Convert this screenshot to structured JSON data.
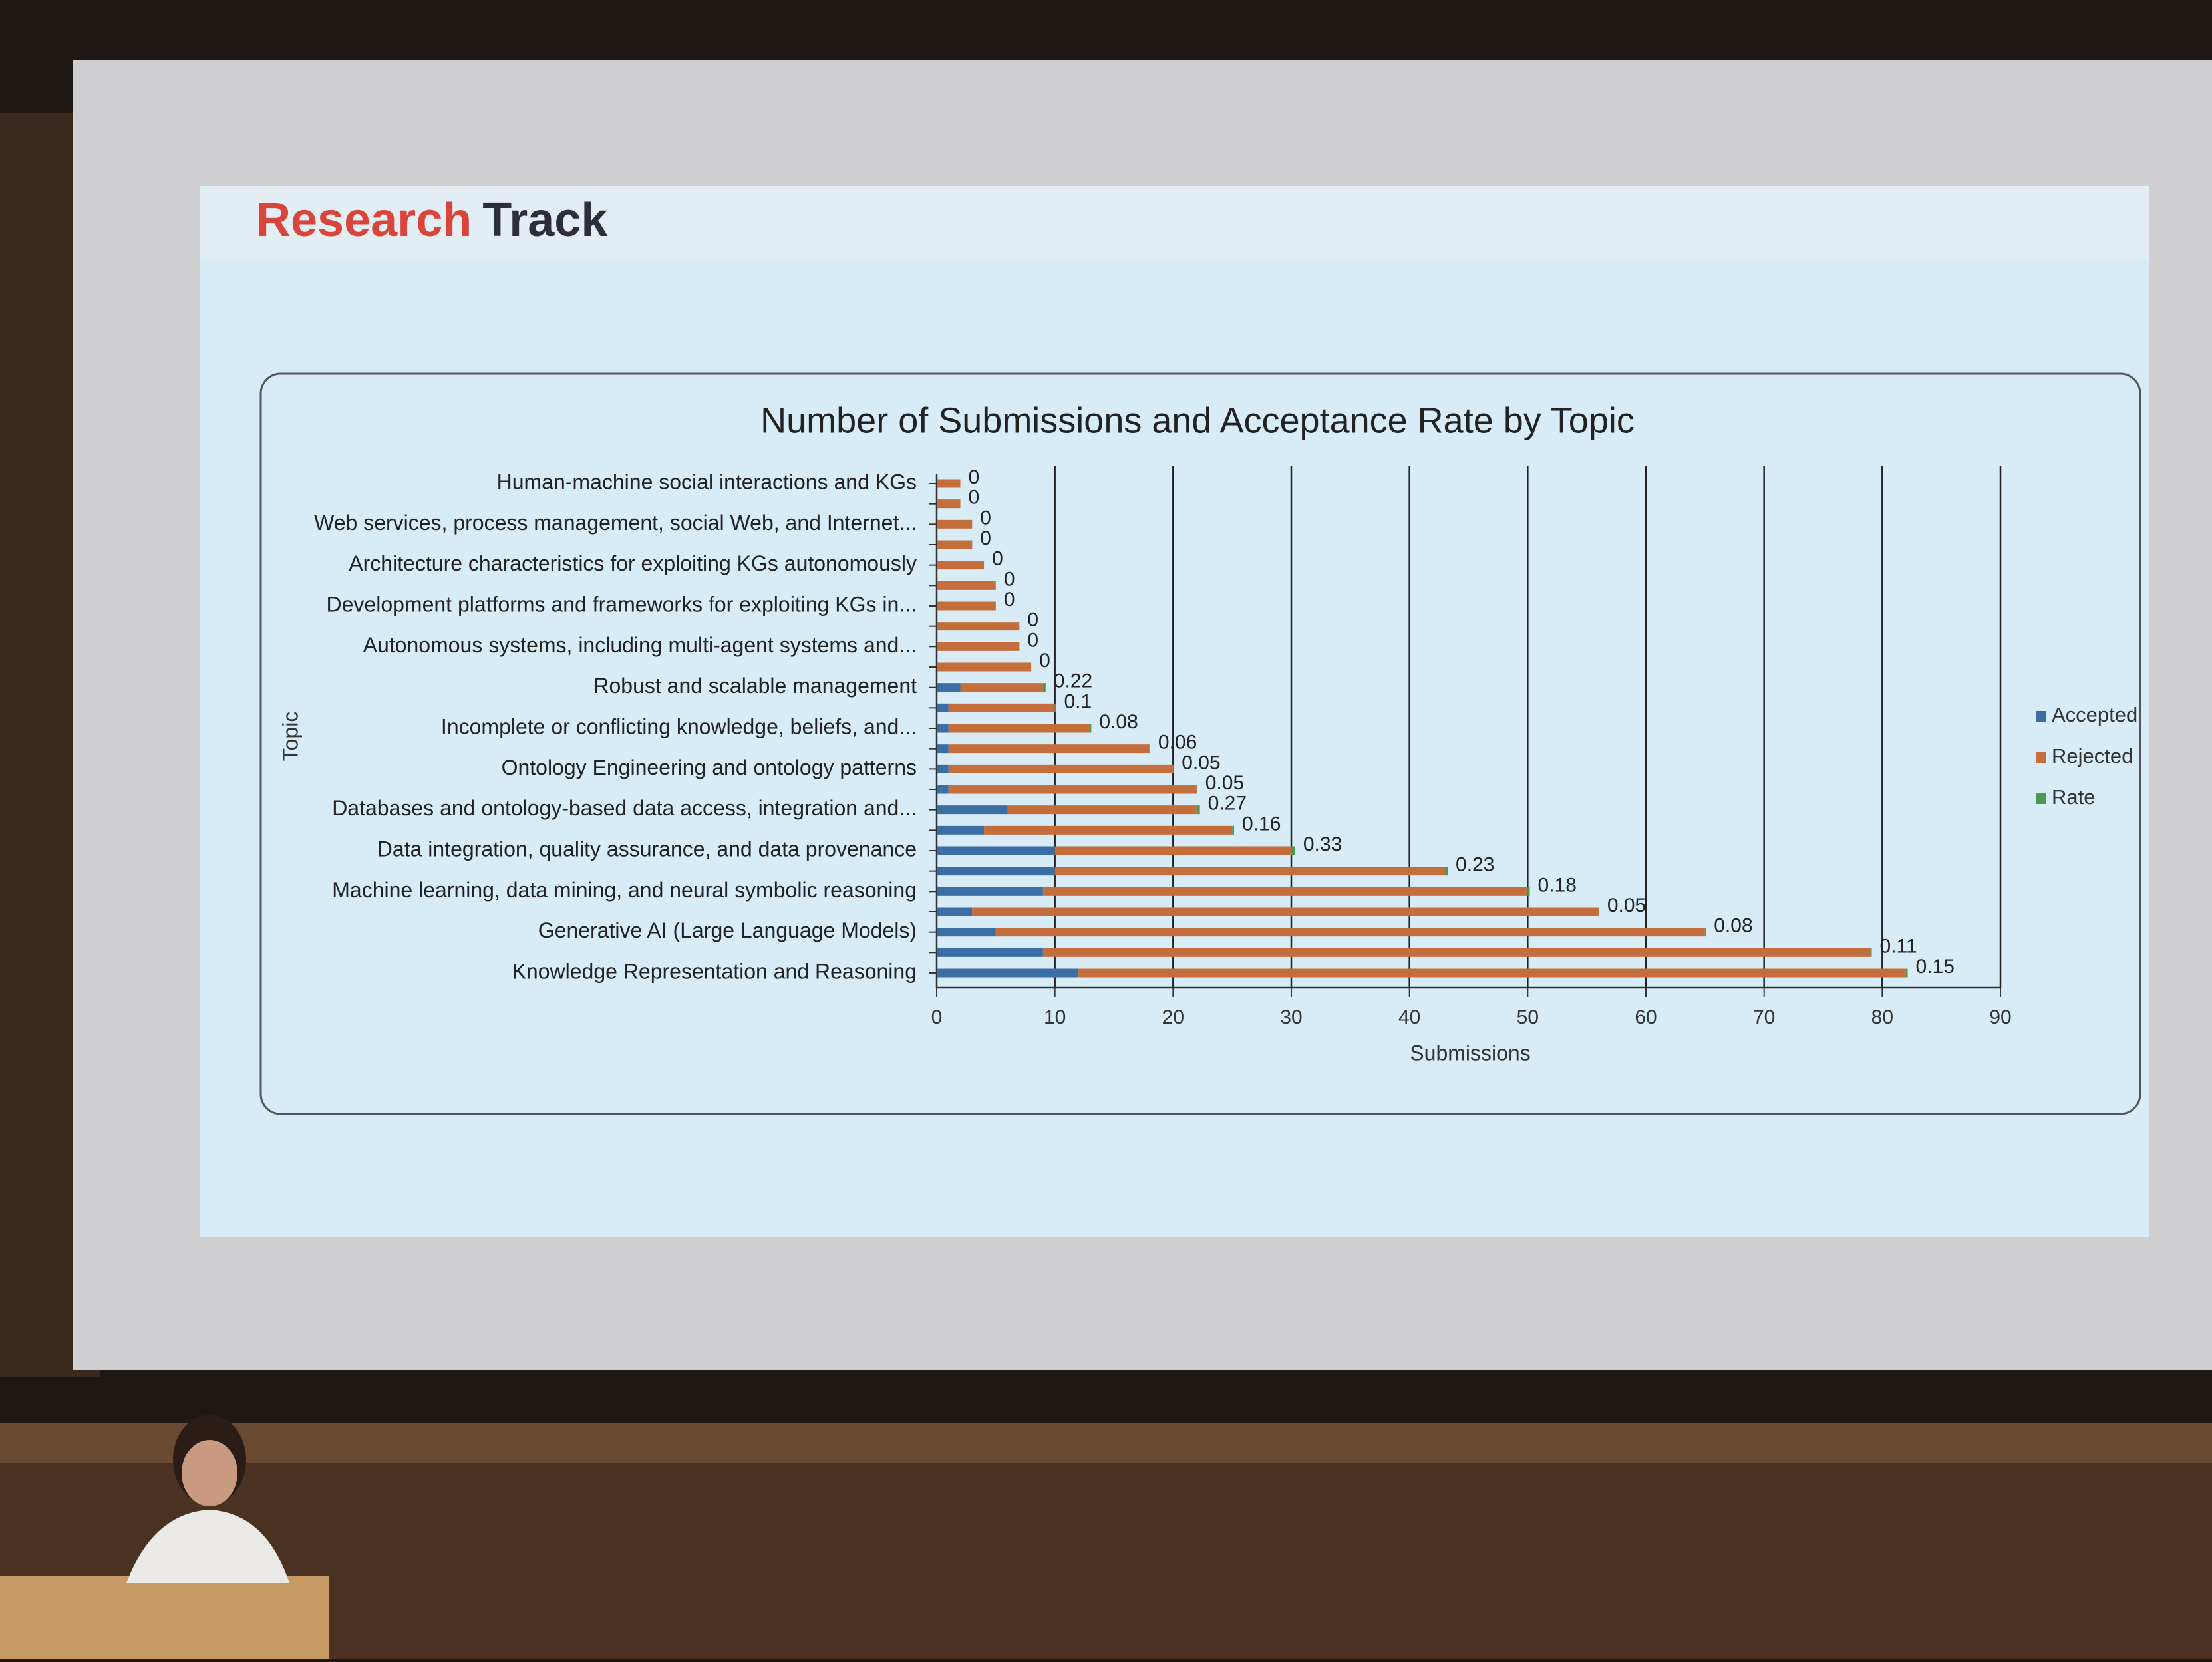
{
  "slide": {
    "title_accent": "Research",
    "title_rest": "Track"
  },
  "chart_data": {
    "type": "stacked-bar-horizontal",
    "title": "Number of Submissions and Acceptance Rate by Topic",
    "x_label": "Submissions",
    "y_label": "Topic",
    "categories": [
      "Human-machine social interactions and KGs",
      null,
      "Web services, process management, social Web, and Internet...",
      null,
      "Architecture characteristics for exploiting KGs autonomously",
      null,
      "Development platforms and frameworks for exploiting KGs in...",
      null,
      "Autonomous systems, including multi-agent systems and...",
      null,
      "Robust and scalable management",
      null,
      "Incomplete or conflicting knowledge, beliefs, and...",
      null,
      "Ontology Engineering and ontology patterns",
      null,
      "Databases and ontology-based data access, integration and...",
      null,
      "Data integration, quality assurance, and data provenance",
      null,
      "Machine learning, data mining, and neural symbolic reasoning",
      null,
      "Generative AI (Large Language Models)",
      null,
      "Knowledge Representation and Reasoning"
    ],
    "series": [
      {
        "name": "Accepted",
        "color": "#3c6ea6",
        "values": [
          0,
          0,
          0,
          0,
          0,
          0,
          0,
          0,
          0,
          0,
          2,
          1,
          1,
          1,
          1,
          1,
          6,
          4,
          10,
          10,
          9,
          3,
          5,
          9,
          12
        ]
      },
      {
        "name": "Rejected",
        "color": "#c46e3c",
        "values": [
          2,
          2,
          3,
          3,
          4,
          5,
          5,
          7,
          7,
          8,
          7,
          9,
          12,
          17,
          19,
          21,
          16,
          21,
          20,
          33,
          41,
          53,
          60,
          70,
          70
        ]
      },
      {
        "name": "Rate",
        "color": "#4a9a55",
        "values": [
          0,
          0,
          0,
          0,
          0,
          0,
          0,
          0,
          0,
          0,
          0.22,
          0.1,
          0.08,
          0.06,
          0.05,
          0.05,
          0.27,
          0.16,
          0.33,
          0.23,
          0.18,
          0.05,
          0.08,
          0.11,
          0.15
        ]
      }
    ],
    "xlim": [
      0,
      90
    ],
    "xticks": [
      0,
      10,
      20,
      30,
      40,
      50,
      60,
      70,
      80,
      90
    ],
    "grid": true,
    "legend": "right"
  }
}
